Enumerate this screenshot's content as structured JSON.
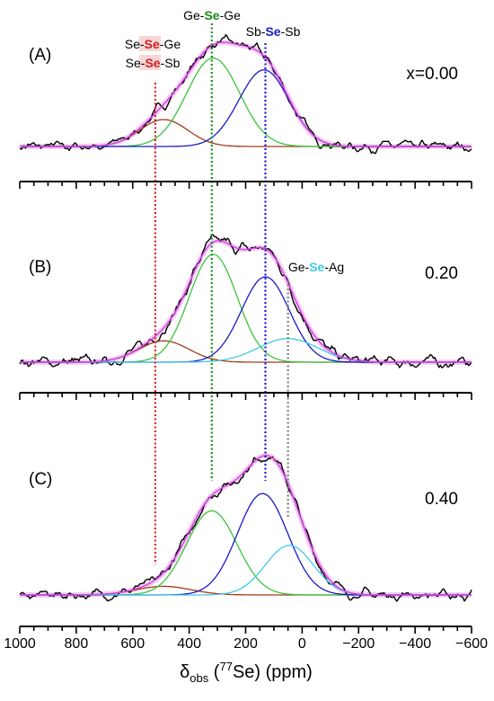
{
  "chart_data": {
    "type": "line",
    "xlabel_main": "δ",
    "xlabel_sub": "obs",
    "xlabel_rest_pre": " (",
    "xlabel_sup": "77",
    "xlabel_rest_post": "Se) (ppm)",
    "xlim": [
      1000,
      -600
    ],
    "xticks": [
      1000,
      800,
      600,
      400,
      200,
      0,
      -200,
      -400,
      -600
    ],
    "xtick_labels": [
      "1000",
      "800",
      "600",
      "400",
      "200",
      "0",
      "−200",
      "−400",
      "−600"
    ],
    "colors": {
      "se_se_ge": "#a33a18",
      "ge_se_ge": "#3cc43c",
      "sb_se_sb": "#1a1ac8",
      "ge_se_ag": "#40c8e8",
      "fit": "#cc44dd",
      "experimental": "#000000",
      "guide_red": "#e02020",
      "guide_green": "#1a8a1a",
      "guide_blue": "#1a1ac8",
      "guide_gray": "#808080"
    },
    "site_labels": {
      "ge_se_ge": {
        "pre": "Ge-",
        "hl": "Se",
        "post": "-Ge"
      },
      "sb_se_sb": {
        "pre": "Sb-",
        "hl": "Se",
        "post": "-Sb"
      },
      "se_se_ge": {
        "pre": "Se-",
        "hl": "Se",
        "post": "-Ge"
      },
      "se_se_sb": {
        "pre": "Se-",
        "hl": "Se",
        "post": "-Sb"
      },
      "ge_se_ag": {
        "pre": "Ge-",
        "hl": "Se",
        "post": "-Ag"
      }
    },
    "guide_lines_ppm": {
      "red": 520,
      "green": 320,
      "blue": 130,
      "gray": 50
    },
    "panels": [
      {
        "id": "A",
        "letter": "(A)",
        "composition": "x=0.00",
        "components": [
          {
            "site": "se_se_ge",
            "center": 490,
            "amp": 0.25,
            "fwhm": 200
          },
          {
            "site": "ge_se_ge",
            "center": 315,
            "amp": 0.82,
            "fwhm": 220
          },
          {
            "site": "sb_se_sb",
            "center": 135,
            "amp": 0.71,
            "fwhm": 210
          }
        ]
      },
      {
        "id": "B",
        "letter": "(B)",
        "composition": "0.20",
        "components": [
          {
            "site": "se_se_ge",
            "center": 490,
            "amp": 0.19,
            "fwhm": 210
          },
          {
            "site": "ge_se_ge",
            "center": 315,
            "amp": 0.96,
            "fwhm": 200
          },
          {
            "site": "sb_se_sb",
            "center": 130,
            "amp": 0.76,
            "fwhm": 200
          },
          {
            "site": "ge_se_ag",
            "center": 50,
            "amp": 0.21,
            "fwhm": 250
          }
        ]
      },
      {
        "id": "C",
        "letter": "(C)",
        "composition": "0.40",
        "components": [
          {
            "site": "se_se_ge",
            "center": 490,
            "amp": 0.08,
            "fwhm": 230
          },
          {
            "site": "ge_se_ge",
            "center": 320,
            "amp": 0.78,
            "fwhm": 210
          },
          {
            "site": "sb_se_sb",
            "center": 140,
            "amp": 0.94,
            "fwhm": 210
          },
          {
            "site": "ge_se_ag",
            "center": 45,
            "amp": 0.46,
            "fwhm": 200
          }
        ]
      }
    ]
  }
}
